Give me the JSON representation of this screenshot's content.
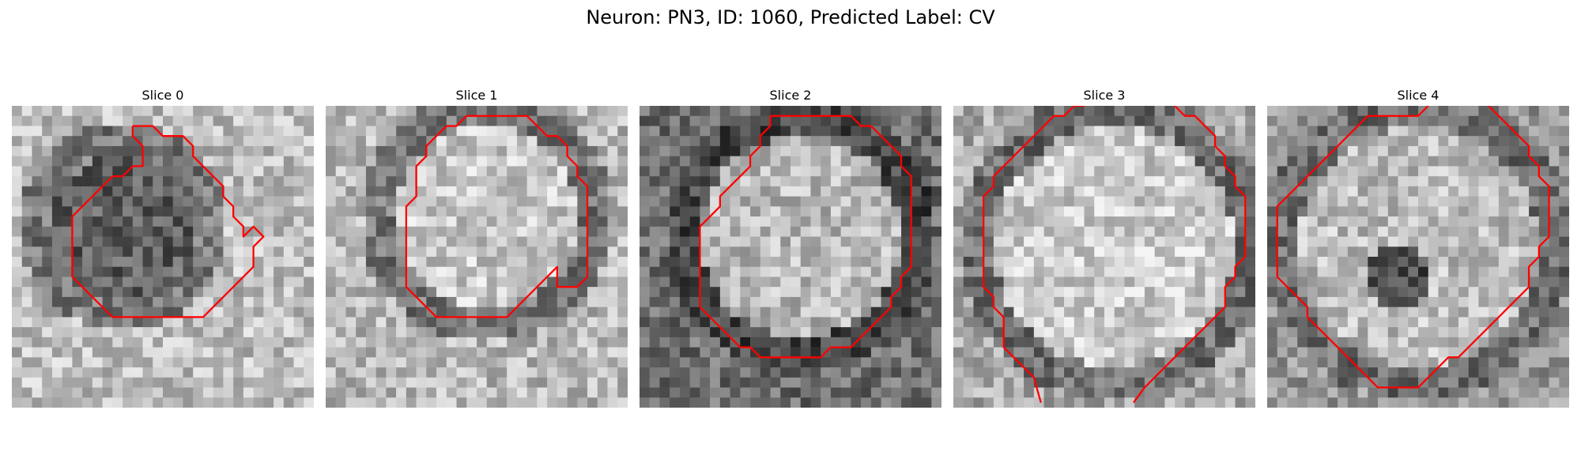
{
  "title": "Neuron: PN3, ID: 1060, Predicted Label: CV",
  "colors": {
    "contour": "#ff0000",
    "background": "#ffffff"
  },
  "panels": [
    {
      "title": "Slice 0"
    },
    {
      "title": "Slice 1"
    },
    {
      "title": "Slice 2"
    },
    {
      "title": "Slice 3"
    },
    {
      "title": "Slice 4"
    }
  ]
}
